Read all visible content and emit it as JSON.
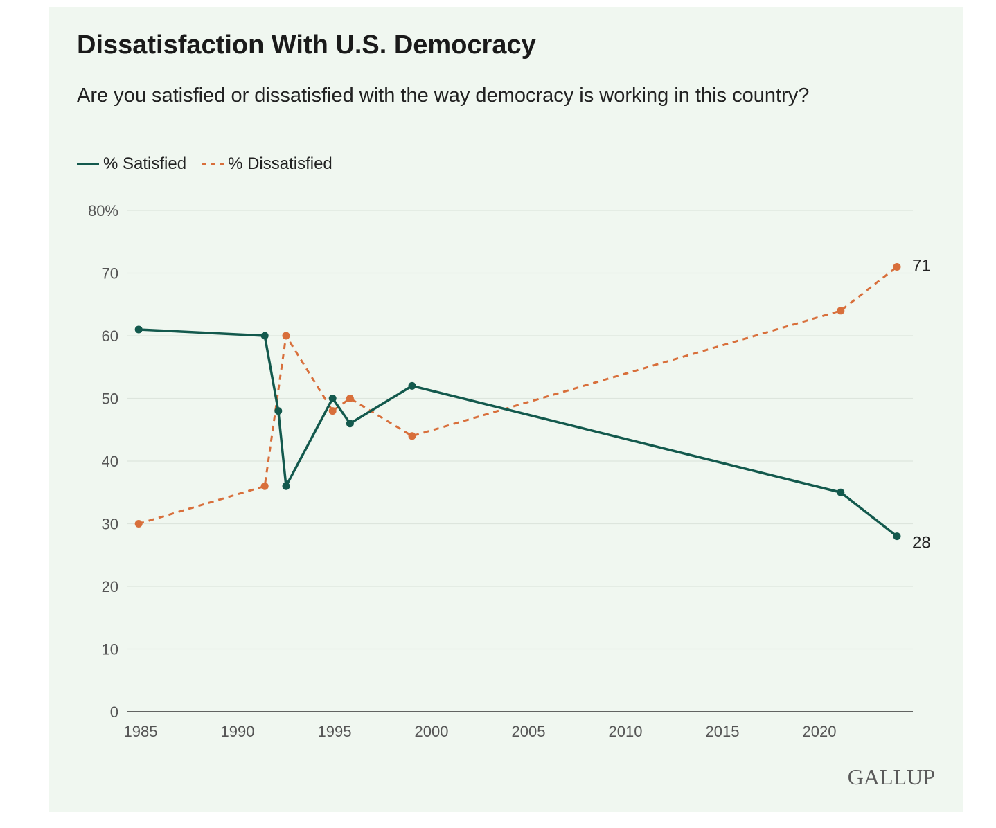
{
  "title": "Dissatisfaction With U.S. Democracy",
  "subtitle": "Are you satisfied or dissatisfied with the way democracy is working in this country?",
  "logo": "GALLUP",
  "colors": {
    "satisfied": "#13594d",
    "dissatisfied": "#d86f3b",
    "background": "#f0f7f0",
    "grid": "#dde5dd"
  },
  "chart_data": {
    "type": "line",
    "title": "Dissatisfaction With U.S. Democracy",
    "xlabel": "",
    "ylabel": "",
    "xlim": [
      1985,
      2024
    ],
    "ylim": [
      0,
      80
    ],
    "x_ticks": [
      1985,
      1990,
      1995,
      2000,
      2005,
      2010,
      2015,
      2020
    ],
    "y_ticks": [
      0,
      10,
      20,
      30,
      40,
      50,
      60,
      70,
      80
    ],
    "y_tick_labels": [
      "0",
      "10",
      "20",
      "30",
      "40",
      "50",
      "60",
      "70",
      "80%"
    ],
    "grid": true,
    "legend": "top-left",
    "series": [
      {
        "name": "% Satisfied",
        "style": "solid",
        "color": "#13594d",
        "x": [
          1984.9,
          1991.4,
          1992.1,
          1992.5,
          1994.9,
          1995.8,
          1999.0,
          2021.1,
          2024.0
        ],
        "y": [
          61,
          60,
          48,
          36,
          50,
          46,
          52,
          35,
          28
        ],
        "end_label": "28"
      },
      {
        "name": "% Dissatisfied",
        "style": "dashed",
        "color": "#d86f3b",
        "x": [
          1984.9,
          1991.4,
          1992.5,
          1994.9,
          1995.8,
          1999.0,
          2021.1,
          2024.0
        ],
        "y": [
          30,
          36,
          60,
          48,
          50,
          44,
          64,
          71
        ],
        "end_label": "71"
      }
    ]
  }
}
